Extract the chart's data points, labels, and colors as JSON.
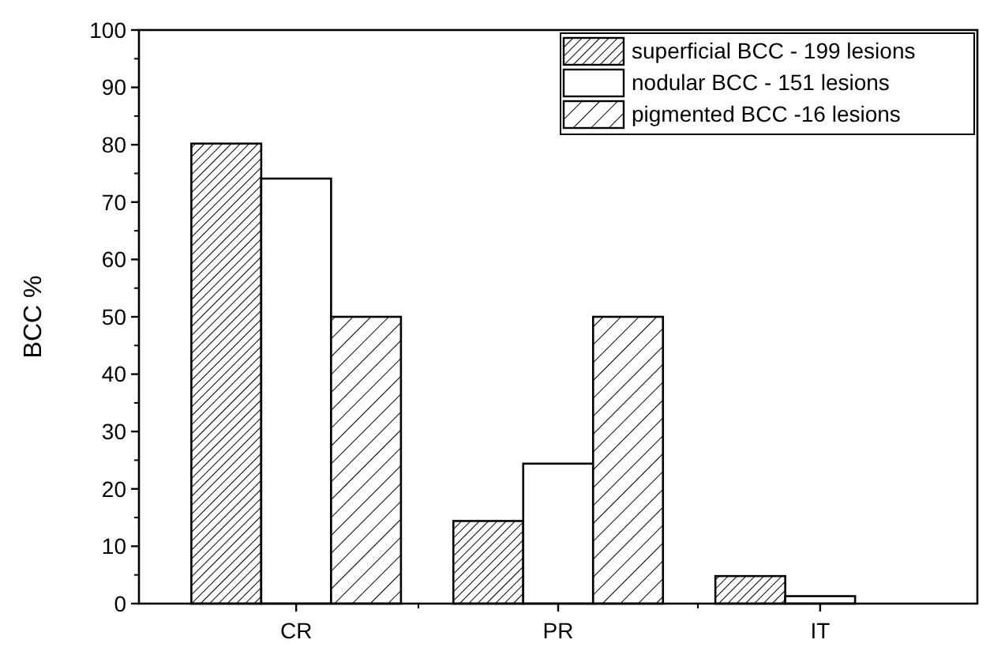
{
  "chart_data": {
    "type": "bar",
    "ylabel": "BCC %",
    "categories": [
      "CR",
      "PR",
      "IT"
    ],
    "ylim": [
      0,
      100
    ],
    "yticks": [
      0,
      10,
      20,
      30,
      40,
      50,
      60,
      70,
      80,
      90,
      100
    ],
    "legend": "top right",
    "series": [
      {
        "name": "superficial BCC - 199 lesions",
        "color": "#000000",
        "values": [
          80.2,
          14.4,
          4.8
        ]
      },
      {
        "name": "nodular BCC - 151 lesions",
        "color": "#ffffff",
        "values": [
          74.1,
          24.4,
          1.3
        ]
      },
      {
        "name": "pigmented  BCC -16 lesions",
        "color": "#000000",
        "values": [
          50,
          50,
          0
        ]
      }
    ]
  }
}
